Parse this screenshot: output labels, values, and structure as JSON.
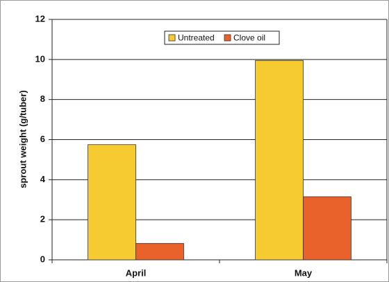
{
  "chart_data": {
    "type": "bar",
    "y_label": "sprout weight (g/tuber)",
    "categories": [
      "April",
      "May"
    ],
    "series": [
      {
        "name": "Untreated",
        "color": "#f6cb32",
        "values": [
          5.75,
          9.95
        ]
      },
      {
        "name": "Clove oil",
        "color": "#e9612b",
        "values": [
          0.82,
          3.15
        ]
      }
    ],
    "ylim": [
      0,
      12
    ],
    "yticks": [
      0,
      2,
      4,
      6,
      8,
      10,
      12
    ],
    "grid": true,
    "legend": "top"
  }
}
